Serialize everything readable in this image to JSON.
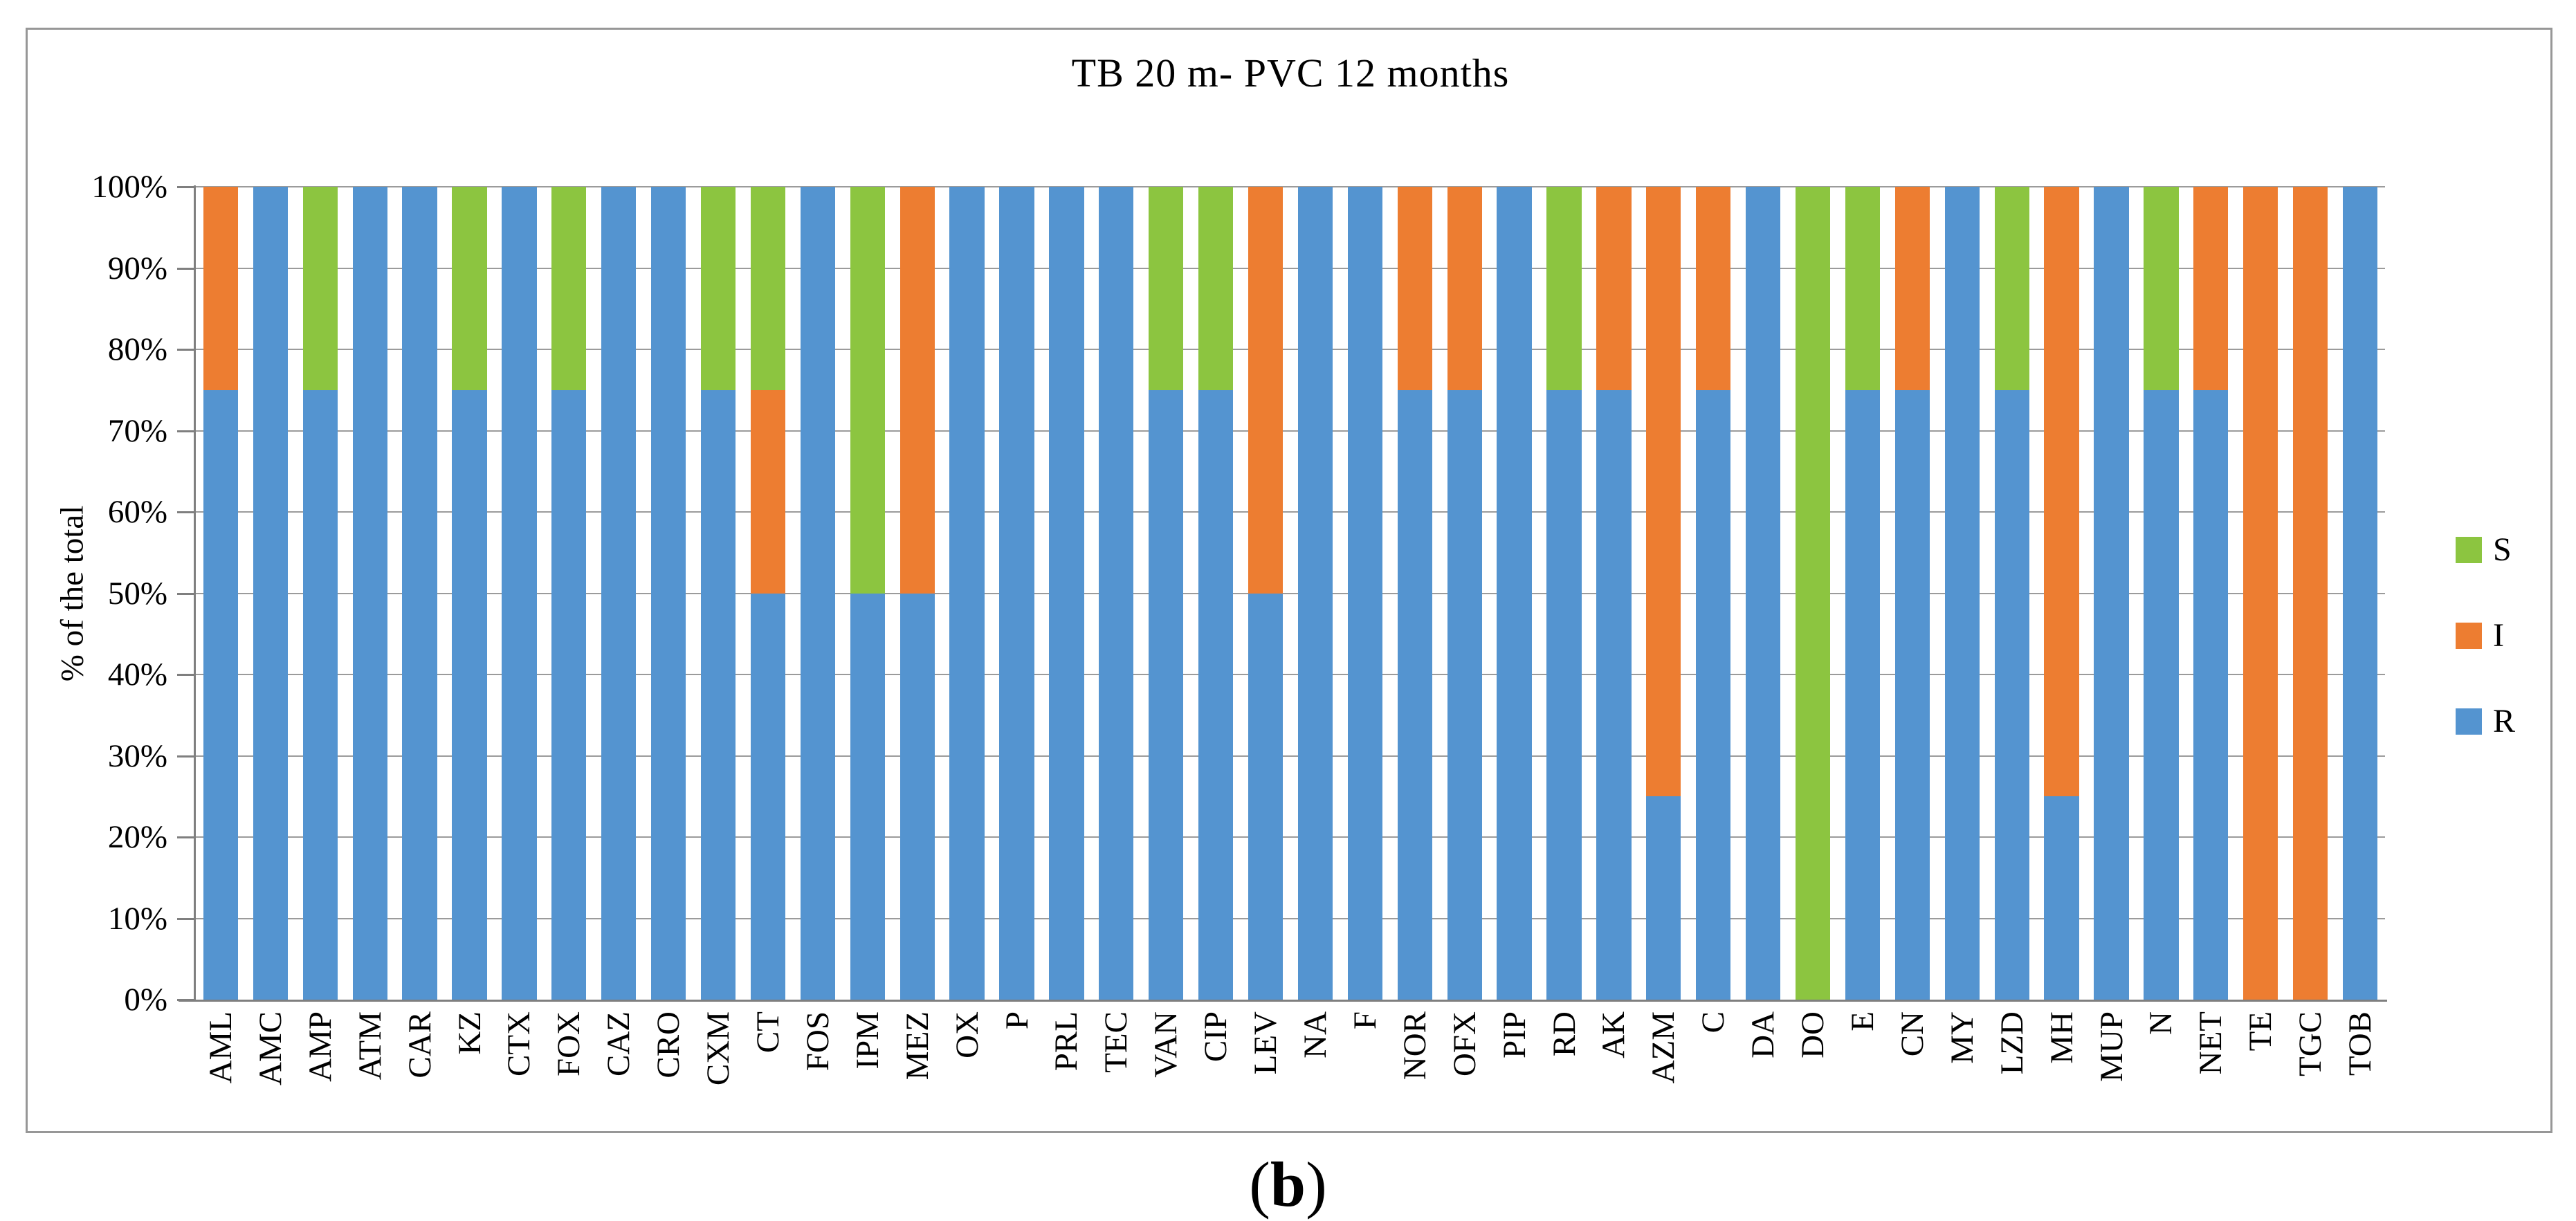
{
  "figure": {
    "title": "TB 20 m- PVC 12 months",
    "y_axis_title": "% of the total",
    "caption": {
      "open": "(",
      "letter": "b",
      "close": ")"
    }
  },
  "legend": [
    {
      "label": "S",
      "color": "#8CC540"
    },
    {
      "label": "I",
      "color": "#ED7D31"
    },
    {
      "label": "R",
      "color": "#5494D0"
    }
  ],
  "colors": {
    "series_S": "#8CC540",
    "series_I": "#ED7D31",
    "series_R": "#5494D0",
    "gridline": "#9B9B9B",
    "axis": "#7F7F7F",
    "frame_border": "#979797",
    "background": "#FFFFFF",
    "text": "#000000"
  },
  "chart_data": {
    "type": "bar",
    "subtype": "stacked-100-percent-vertical",
    "title": "TB 20 m- PVC 12 months",
    "xlabel": "",
    "ylabel": "% of the total",
    "ylim": [
      0,
      100
    ],
    "ytick_step": 10,
    "ytick_labels": [
      "0%",
      "10%",
      "20%",
      "30%",
      "40%",
      "50%",
      "60%",
      "70%",
      "80%",
      "90%",
      "100%"
    ],
    "grid": true,
    "legend_position": "right",
    "legend_order_top_to_bottom": [
      "S",
      "I",
      "R"
    ],
    "stack_order_bottom_to_top": [
      "R",
      "I",
      "S"
    ],
    "x_tick_label_rotation_degrees": 90,
    "categories": [
      "AML",
      "AMC",
      "AMP",
      "ATM",
      "CAR",
      "KZ",
      "CTX",
      "FOX",
      "CAZ",
      "CRO",
      "CXM",
      "CT",
      "FOS",
      "IPM",
      "MEZ",
      "OX",
      "P",
      "PRL",
      "TEC",
      "VAN",
      "CIP",
      "LEV",
      "NA",
      "F",
      "NOR",
      "OFX",
      "PIP",
      "RD",
      "AK",
      "AZM",
      "C",
      "DA",
      "DO",
      "E",
      "CN",
      "MY",
      "LZD",
      "MH",
      "MUP",
      "N",
      "NET",
      "TE",
      "TGC",
      "TOB"
    ],
    "series": [
      {
        "name": "S",
        "color": "#8CC540",
        "values": [
          0,
          0,
          25,
          0,
          0,
          25,
          0,
          25,
          0,
          0,
          25,
          25,
          0,
          50,
          0,
          0,
          0,
          0,
          0,
          25,
          25,
          0,
          0,
          0,
          0,
          0,
          0,
          25,
          0,
          0,
          0,
          0,
          100,
          25,
          0,
          0,
          25,
          0,
          0,
          25,
          0,
          0,
          0,
          0
        ]
      },
      {
        "name": "I",
        "color": "#ED7D31",
        "values": [
          25,
          0,
          0,
          0,
          0,
          0,
          0,
          0,
          0,
          0,
          0,
          25,
          0,
          0,
          50,
          0,
          0,
          0,
          0,
          0,
          0,
          50,
          0,
          0,
          25,
          25,
          0,
          0,
          25,
          75,
          25,
          0,
          0,
          0,
          25,
          0,
          0,
          75,
          0,
          0,
          25,
          100,
          100,
          0
        ]
      },
      {
        "name": "R",
        "color": "#5494D0",
        "values": [
          75,
          100,
          75,
          100,
          100,
          75,
          100,
          75,
          100,
          100,
          75,
          50,
          100,
          50,
          50,
          100,
          100,
          100,
          100,
          75,
          75,
          50,
          100,
          100,
          75,
          75,
          100,
          75,
          75,
          25,
          75,
          100,
          0,
          75,
          75,
          100,
          75,
          25,
          100,
          75,
          75,
          0,
          0,
          100
        ]
      }
    ]
  }
}
